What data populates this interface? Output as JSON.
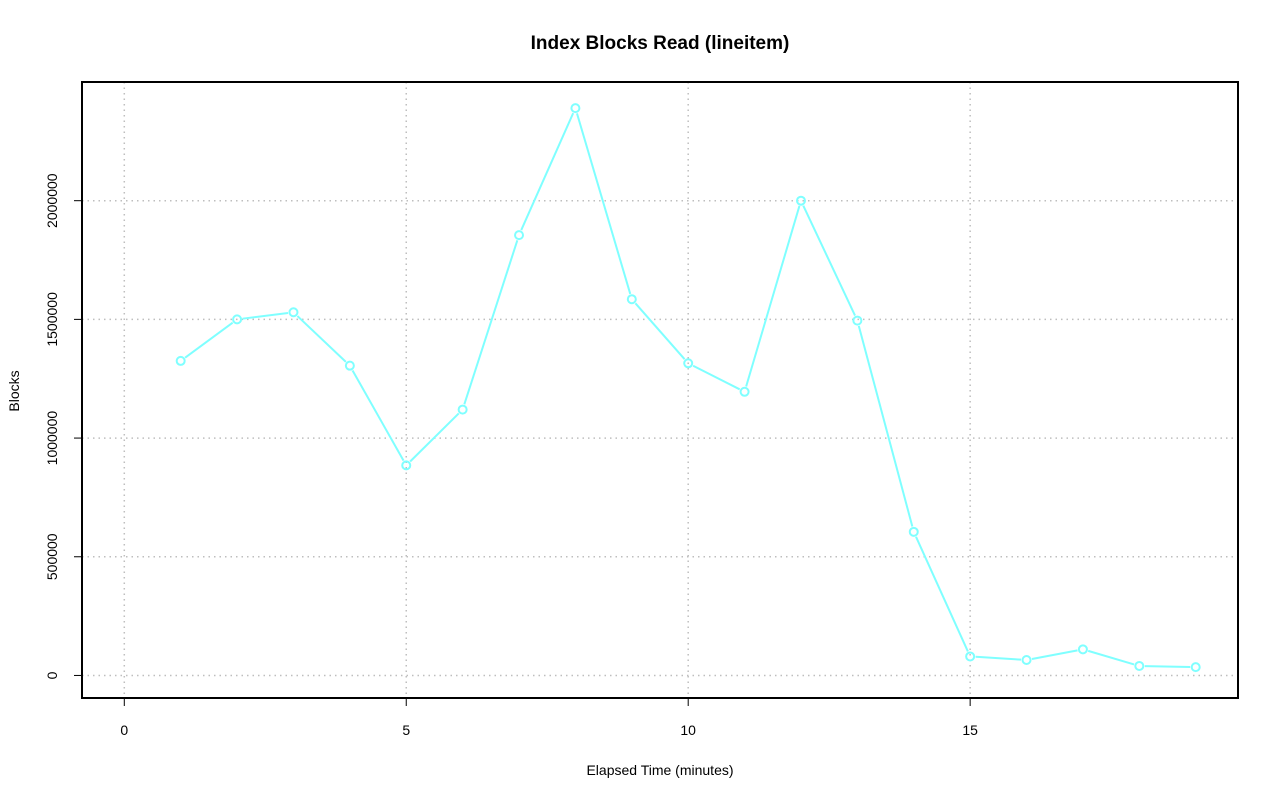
{
  "chart_data": {
    "type": "line",
    "title": "Index Blocks Read (lineitem)",
    "xlabel": "Elapsed Time (minutes)",
    "ylabel": "Blocks",
    "xlim": [
      -0.75,
      19.75
    ],
    "ylim": [
      -95000,
      2500000
    ],
    "x_ticks": [
      0,
      5,
      10,
      15
    ],
    "y_ticks": [
      0,
      500000,
      1000000,
      1500000,
      2000000
    ],
    "x_tick_labels": [
      "0",
      "5",
      "10",
      "15"
    ],
    "y_tick_labels": [
      "0",
      "500000",
      "1000000",
      "1500000",
      "2000000"
    ],
    "grid": true,
    "legend": "none",
    "colors": {
      "series": "#7fffff",
      "grid": "#bebebe",
      "axis": "#000000"
    },
    "series": [
      {
        "x": [
          1,
          2,
          3,
          4,
          5,
          6,
          7,
          8,
          9,
          10,
          11,
          12,
          13,
          14,
          15,
          16,
          17,
          18,
          19
        ],
        "y": [
          1325000,
          1500000,
          1530000,
          1305000,
          885000,
          1120000,
          1855000,
          2390000,
          1585000,
          1315000,
          1195000,
          2000000,
          1495000,
          605000,
          80000,
          65000,
          110000,
          40000,
          35000
        ]
      }
    ]
  }
}
